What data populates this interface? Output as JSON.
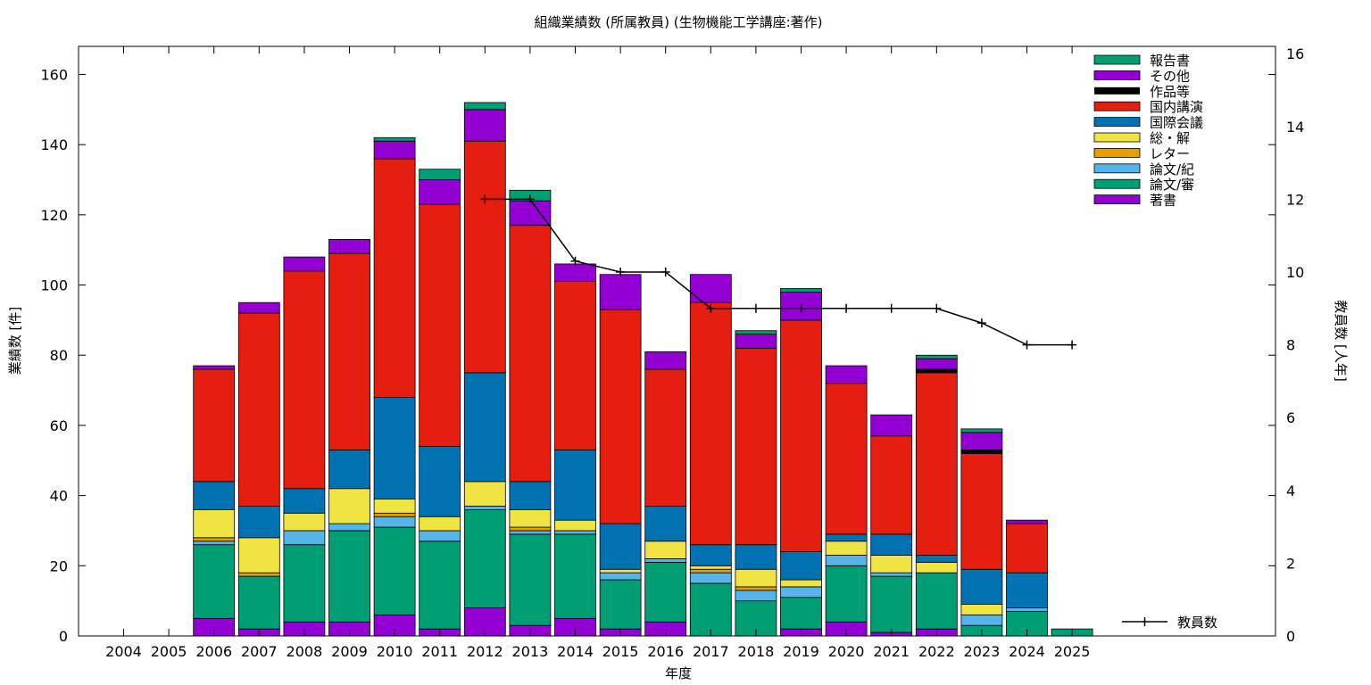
{
  "chart_data": {
    "type": "bar",
    "stacked": true,
    "title": "組織業績数 (所属教員) (生物機能工学講座:著作)",
    "xlabel": "年度",
    "ylabel": "業績数 [件]",
    "y2label": "教員数 [人年]",
    "ylim": [
      0,
      168
    ],
    "y2lim": [
      0,
      16.2
    ],
    "yticks": [
      0,
      20,
      40,
      60,
      80,
      100,
      120,
      140,
      160
    ],
    "y2ticks": [
      0,
      2,
      4,
      6,
      8,
      10,
      12,
      14,
      16
    ],
    "grid": false,
    "legend_position": "top-right",
    "categories": [
      "2004",
      "2005",
      "2006",
      "2007",
      "2008",
      "2009",
      "2010",
      "2011",
      "2012",
      "2013",
      "2014",
      "2015",
      "2016",
      "2017",
      "2018",
      "2019",
      "2020",
      "2021",
      "2022",
      "2023",
      "2024",
      "2025"
    ],
    "series": [
      {
        "name": "著書",
        "color": "#9400d3",
        "values": [
          0,
          0,
          5,
          2,
          4,
          4,
          6,
          2,
          8,
          3,
          5,
          2,
          4,
          0,
          0,
          2,
          4,
          1,
          2,
          0,
          0,
          0
        ]
      },
      {
        "name": "論文/審",
        "color": "#009e73",
        "values": [
          0,
          0,
          21,
          15,
          22,
          26,
          25,
          25,
          28,
          26,
          24,
          14,
          17,
          15,
          10,
          9,
          16,
          16,
          16,
          3,
          7,
          2
        ]
      },
      {
        "name": "論文/紀",
        "color": "#56b4e9",
        "values": [
          0,
          0,
          1,
          0,
          4,
          2,
          3,
          3,
          1,
          1,
          1,
          2,
          1,
          3,
          3,
          3,
          3,
          1,
          0,
          3,
          1,
          0
        ]
      },
      {
        "name": "レター",
        "color": "#e69f00",
        "values": [
          0,
          0,
          1,
          1,
          0,
          0,
          1,
          0,
          0,
          1,
          0,
          0,
          0,
          1,
          1,
          0,
          0,
          0,
          0,
          0,
          0,
          0
        ]
      },
      {
        "name": "総・解",
        "color": "#f0e442",
        "values": [
          0,
          0,
          8,
          10,
          5,
          10,
          4,
          4,
          7,
          5,
          3,
          1,
          5,
          1,
          5,
          2,
          4,
          5,
          3,
          3,
          0,
          0
        ]
      },
      {
        "name": "国際会議",
        "color": "#0072b2",
        "values": [
          0,
          0,
          8,
          9,
          7,
          11,
          29,
          20,
          31,
          8,
          20,
          13,
          10,
          6,
          7,
          8,
          2,
          6,
          2,
          10,
          10,
          0
        ]
      },
      {
        "name": "国内講演",
        "color": "#e51e10",
        "values": [
          0,
          0,
          32,
          55,
          62,
          56,
          68,
          69,
          66,
          73,
          48,
          61,
          39,
          69,
          56,
          66,
          43,
          28,
          52,
          33,
          14,
          0
        ]
      },
      {
        "name": "作品等",
        "color": "#000000",
        "values": [
          0,
          0,
          0,
          0,
          0,
          0,
          0,
          0,
          0,
          0,
          0,
          0,
          0,
          0,
          0,
          0,
          0,
          0,
          1,
          1,
          0,
          0
        ]
      },
      {
        "name": "その他",
        "color": "#9400d3",
        "values": [
          0,
          0,
          1,
          3,
          4,
          4,
          5,
          7,
          9,
          7,
          5,
          10,
          5,
          8,
          4,
          8,
          5,
          6,
          3,
          5,
          1,
          0
        ]
      },
      {
        "name": "報告書",
        "color": "#009e73",
        "values": [
          0,
          0,
          0,
          0,
          0,
          0,
          1,
          3,
          2,
          3,
          0,
          0,
          0,
          0,
          1,
          1,
          0,
          0,
          1,
          1,
          0,
          0
        ]
      }
    ],
    "line_series": {
      "name": "教員数",
      "color": "#000000",
      "axis": "y2",
      "x": [
        "2012",
        "2013",
        "2014",
        "2015",
        "2016",
        "2017",
        "2018",
        "2019",
        "2020",
        "2021",
        "2022",
        "2023",
        "2024",
        "2025"
      ],
      "values": [
        12,
        12,
        10.3,
        10,
        10,
        9,
        9,
        9,
        9,
        9,
        9,
        8.6,
        8,
        8
      ]
    }
  }
}
